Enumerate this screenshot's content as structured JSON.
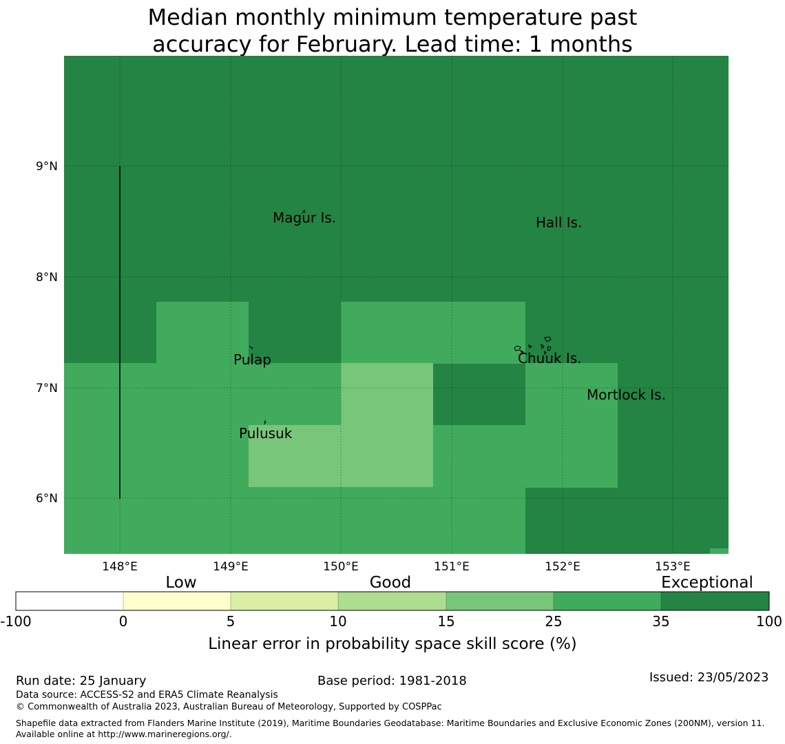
{
  "title": {
    "line1": "Median monthly minimum temperature past",
    "line2": "accuracy for February. Lead time: 1 months"
  },
  "map": {
    "lat_labels": [
      "9°N",
      "8°N",
      "7°N",
      "6°N"
    ],
    "lon_labels": [
      "148°E",
      "149°E",
      "150°E",
      "151°E",
      "152°E",
      "153°E"
    ],
    "places": [
      "Magur Is.",
      "Hall Is.",
      "Pulap",
      "Chuuk Is.",
      "Mortlock Is.",
      "Pulusuk"
    ],
    "category_colors": {
      "exceptional": "#238443",
      "very_good": "#41ab5d",
      "good": "#78c679",
      "fair": "#addd8e",
      "low_fair": "#d9f0a3",
      "low": "#ffffcc",
      "none": "#ffffff"
    }
  },
  "legend": {
    "categories": [
      "Low",
      "Good",
      "Exceptional"
    ],
    "ticks": [
      "-100",
      "0",
      "5",
      "10",
      "15",
      "25",
      "35",
      "100"
    ],
    "colors": [
      "#ffffff",
      "#ffffcc",
      "#d9f0a3",
      "#addd8e",
      "#78c679",
      "#41ab5d",
      "#238443"
    ],
    "label": "Linear error in probability space skill score (%)"
  },
  "footer": {
    "run_date": "Run date: 25 January",
    "base_period": "Base period: 1981-2018",
    "issued": "Issued: 23/05/2023",
    "data_source": "Data source: ACCESS-S2 and ERA5 Climate Reanalysis",
    "copyright": "© Commonwealth of Australia 2023, Australian Bureau of Meteorology, Supported by COSPPac",
    "shapefile": "Shapefile data extracted from Flanders Marine Institute (2019), Maritime Boundaries Geodatabase: Maritime Boundaries and Exclusive Economic Zones (200NM), version 11. Available online at http://www.marineregions.org/."
  }
}
